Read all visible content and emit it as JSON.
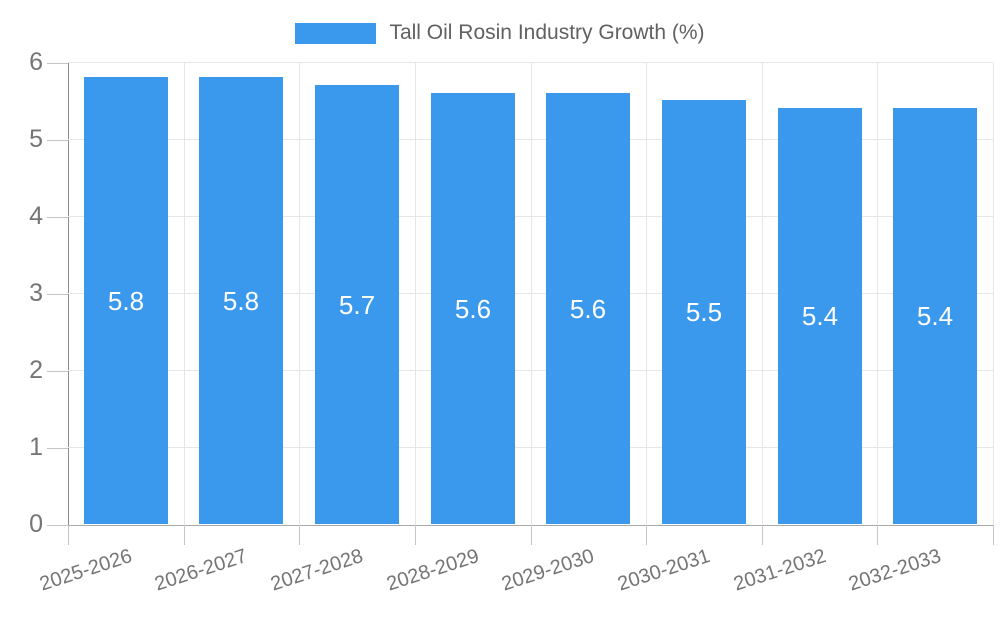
{
  "legend": {
    "label": "Tall Oil Rosin Industry Growth (%)"
  },
  "chart_data": {
    "type": "bar",
    "title": "Tall Oil Rosin Industry Growth (%)",
    "categories": [
      "2025-2026",
      "2026-2027",
      "2027-2028",
      "2028-2029",
      "2029-2030",
      "2030-2031",
      "2031-2032",
      "2032-2033"
    ],
    "values": [
      5.8,
      5.8,
      5.7,
      5.6,
      5.6,
      5.5,
      5.4,
      5.4
    ],
    "xlabel": "",
    "ylabel": "",
    "ylim": [
      0,
      6
    ],
    "yticks": [
      0,
      1,
      2,
      3,
      4,
      5,
      6
    ],
    "grid": true,
    "legend_position": "top-center",
    "colors": {
      "bar": "#3b99ed",
      "bar_value_label": "#ffffff",
      "axis_text": "#757575",
      "legend_text": "#616161",
      "gridline": "#e6e6e6"
    }
  }
}
